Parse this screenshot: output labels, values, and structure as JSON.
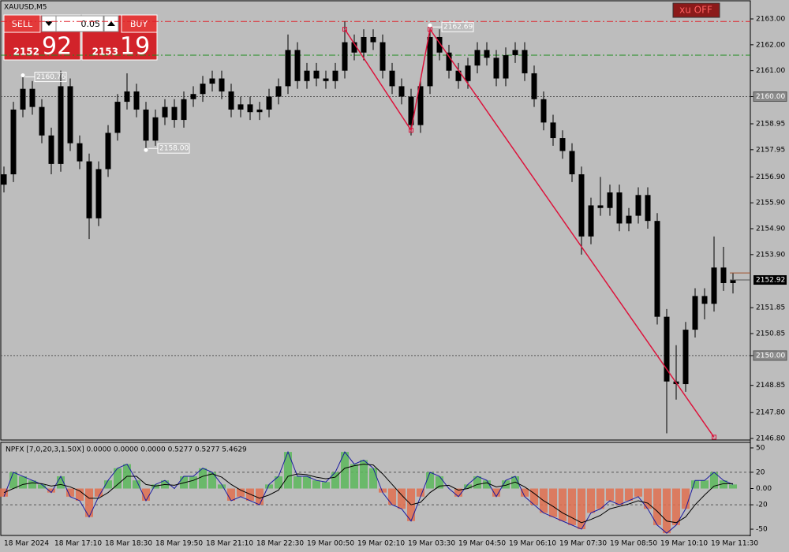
{
  "symbol_label": "XAUUSD,M5",
  "toolbar_button": "xu OFF",
  "trade_panel": {
    "sell": "SELL",
    "buy": "BUY",
    "lot": "0.05",
    "sell_price_main": "2152",
    "sell_price_big": "92",
    "buy_price_main": "2153",
    "buy_price_big": "19"
  },
  "chart_data": [
    {
      "type": "candlestick",
      "candle_color": "#000000",
      "x_labels": [
        "18 Mar 2024",
        "18 Mar 17:10",
        "18 Mar 18:30",
        "18 Mar 19:50",
        "18 Mar 21:10",
        "18 Mar 22:30",
        "19 Mar 00:50",
        "19 Mar 02:10",
        "19 Mar 03:30",
        "19 Mar 04:50",
        "19 Mar 06:10",
        "19 Mar 07:30",
        "19 Mar 08:50",
        "19 Mar 10:10",
        "19 Mar 11:30"
      ],
      "open": [
        2156.6,
        2157.0,
        2159.5,
        2160.3,
        2159.6,
        2158.5,
        2157.4,
        2160.4,
        2158.2,
        2157.5,
        2155.3,
        2157.2,
        2158.6,
        2159.8,
        2160.2,
        2159.5,
        2158.3,
        2159.2,
        2159.6,
        2159.1,
        2159.9,
        2160.1,
        2160.5,
        2160.7,
        2160.2,
        2159.5,
        2159.7,
        2159.4,
        2159.5,
        2160.0,
        2160.4,
        2161.8,
        2160.6,
        2161.0,
        2160.7,
        2160.6,
        2161.0,
        2162.1,
        2161.7,
        2162.3,
        2162.1,
        2161.0,
        2160.4,
        2160.0,
        2158.9,
        2160.4,
        2162.3,
        2161.7,
        2161.0,
        2160.6,
        2161.2,
        2161.8,
        2161.5,
        2160.7,
        2161.6,
        2161.8,
        2160.9,
        2159.9,
        2159.0,
        2158.4,
        2157.9,
        2157.0,
        2154.6,
        2155.8,
        2155.7,
        2156.3,
        2155.1,
        2155.4,
        2156.2,
        2155.2,
        2151.5,
        2149.0,
        2148.9,
        2151.0,
        2152.3,
        2152.0,
        2153.4,
        2152.8
      ],
      "high": [
        2157.3,
        2159.8,
        2160.76,
        2160.6,
        2159.9,
        2158.8,
        2161.0,
        2160.7,
        2158.5,
        2157.8,
        2157.5,
        2158.9,
        2160.1,
        2160.9,
        2160.5,
        2159.8,
        2159.5,
        2159.9,
        2159.9,
        2160.2,
        2160.4,
        2160.8,
        2161.0,
        2161.0,
        2160.5,
        2160.0,
        2160.0,
        2159.8,
        2160.3,
        2160.7,
        2162.4,
        2162.1,
        2161.3,
        2161.3,
        2161.0,
        2161.3,
        2162.9,
        2162.4,
        2162.6,
        2162.6,
        2162.4,
        2161.3,
        2160.7,
        2160.3,
        2160.7,
        2162.69,
        2162.6,
        2162.0,
        2161.3,
        2161.5,
        2162.1,
        2162.1,
        2161.8,
        2161.9,
        2162.1,
        2162.1,
        2161.2,
        2160.2,
        2159.3,
        2158.7,
        2158.2,
        2157.3,
        2156.1,
        2156.9,
        2156.6,
        2156.6,
        2155.7,
        2156.5,
        2156.5,
        2155.5,
        2151.8,
        2150.4,
        2151.3,
        2152.6,
        2152.6,
        2154.6,
        2154.2,
        2153.2
      ],
      "low": [
        2156.3,
        2156.7,
        2159.2,
        2159.3,
        2158.2,
        2157.0,
        2157.1,
        2157.9,
        2157.2,
        2154.5,
        2155.0,
        2156.9,
        2158.3,
        2159.5,
        2159.2,
        2158.0,
        2158.1,
        2158.9,
        2158.8,
        2158.8,
        2159.6,
        2159.8,
        2160.2,
        2159.9,
        2159.2,
        2159.2,
        2159.1,
        2159.1,
        2159.2,
        2159.7,
        2160.1,
        2160.3,
        2160.3,
        2160.4,
        2160.3,
        2160.3,
        2160.7,
        2161.4,
        2161.4,
        2161.8,
        2160.7,
        2160.1,
        2159.7,
        2158.5,
        2158.6,
        2160.1,
        2161.4,
        2160.7,
        2160.3,
        2160.3,
        2160.9,
        2161.2,
        2160.4,
        2160.4,
        2161.3,
        2160.6,
        2159.6,
        2158.7,
        2158.1,
        2157.6,
        2156.7,
        2153.9,
        2154.3,
        2155.4,
        2155.4,
        2154.8,
        2154.8,
        2155.1,
        2154.9,
        2151.2,
        2147.0,
        2148.3,
        2148.6,
        2150.7,
        2151.4,
        2151.7,
        2152.5,
        2152.4
      ],
      "close": [
        2157.0,
        2159.5,
        2160.3,
        2159.6,
        2158.5,
        2157.4,
        2160.4,
        2158.2,
        2157.5,
        2155.3,
        2157.2,
        2158.6,
        2159.8,
        2160.2,
        2159.5,
        2158.3,
        2159.2,
        2159.6,
        2159.1,
        2159.9,
        2160.1,
        2160.5,
        2160.7,
        2160.2,
        2159.5,
        2159.7,
        2159.4,
        2159.5,
        2160.0,
        2160.4,
        2161.8,
        2160.6,
        2161.0,
        2160.7,
        2160.6,
        2161.0,
        2162.1,
        2161.7,
        2162.3,
        2162.1,
        2161.0,
        2160.4,
        2160.0,
        2158.9,
        2160.4,
        2162.3,
        2161.7,
        2161.0,
        2160.6,
        2161.2,
        2161.8,
        2161.5,
        2160.7,
        2161.6,
        2161.8,
        2160.9,
        2159.9,
        2159.0,
        2158.4,
        2157.9,
        2157.0,
        2154.6,
        2155.8,
        2155.7,
        2156.3,
        2155.1,
        2155.4,
        2156.2,
        2155.2,
        2151.5,
        2149.0,
        2148.9,
        2151.0,
        2152.3,
        2152.0,
        2153.4,
        2152.8,
        2152.92
      ],
      "ylim": [
        2146.74,
        2163.7
      ],
      "yticks": [
        {
          "value": 2163,
          "label": "2163.00"
        },
        {
          "value": 2162,
          "label": "2162.00"
        },
        {
          "value": 2161,
          "label": "2161.00"
        },
        {
          "value": 2160,
          "label": "2160.00"
        },
        2158.95,
        2157.95,
        {
          "value": 2156.9,
          "label": "2156.90"
        },
        {
          "value": 2155.9,
          "label": "2155.90"
        },
        {
          "value": 2154.9,
          "label": "2154.90"
        },
        {
          "value": 2153.9,
          "label": "2153.90"
        },
        2151.85,
        2150.85,
        {
          "value": 2150,
          "label": "2150.00"
        },
        2148.85,
        {
          "value": 2147.8,
          "label": "2147.80"
        },
        {
          "value": 2146.8,
          "label": "2146.80"
        }
      ],
      "levels": [
        {
          "value": 2162.9,
          "color": "#e0202a",
          "dash": "dashdot"
        },
        {
          "value": 2161.6,
          "color": "#1a8a1a",
          "dash": "dashdot"
        },
        {
          "value": 2160,
          "color": "#555555",
          "dash": "dot"
        },
        {
          "value": 2150,
          "color": "#555555",
          "dash": "dot"
        }
      ],
      "last_price": 2152.92,
      "ask_line": 2153.19,
      "price_labels": [
        2160.76,
        {
          "value": 2158,
          "label": "2158.00"
        },
        2162.69
      ],
      "zigzag": {
        "color": "#dc143c",
        "x": [
          36,
          43,
          45,
          75
        ],
        "y": [
          2162.6,
          2158.7,
          2162.6,
          2146.85
        ]
      }
    },
    {
      "type": "histogram",
      "title": "NPFX [7,0,20,3,1.50X] 0.0000 0.0000 0.0000 0.5277 0.5277 5.4629",
      "positive_color": "#5cb85c",
      "negative_color": "#e07050",
      "line_color": "#1a1aa0",
      "signal_color": "#000000",
      "values": [
        -10,
        20,
        15,
        10,
        5,
        -5,
        15,
        -10,
        -15,
        -35,
        -10,
        10,
        25,
        30,
        10,
        -15,
        5,
        10,
        0,
        15,
        15,
        25,
        20,
        5,
        -15,
        -10,
        -15,
        -20,
        5,
        15,
        45,
        15,
        15,
        10,
        8,
        20,
        45,
        30,
        35,
        25,
        -5,
        -20,
        -25,
        -40,
        -10,
        20,
        15,
        0,
        -10,
        5,
        15,
        10,
        -10,
        10,
        15,
        -10,
        -20,
        -30,
        -35,
        -40,
        -45,
        -50,
        -30,
        -25,
        -15,
        -20,
        -15,
        -10,
        -25,
        -45,
        -55,
        -45,
        -25,
        10,
        10,
        20,
        10,
        5
      ],
      "signal": [
        -5,
        0,
        5,
        7,
        6,
        3,
        5,
        2,
        -3,
        -12,
        -12,
        -5,
        5,
        15,
        15,
        5,
        3,
        5,
        4,
        7,
        10,
        15,
        18,
        14,
        5,
        -2,
        -7,
        -12,
        -8,
        -2,
        15,
        18,
        17,
        14,
        12,
        14,
        25,
        28,
        30,
        29,
        18,
        5,
        -8,
        -20,
        -17,
        -5,
        3,
        4,
        -2,
        0,
        5,
        7,
        2,
        4,
        8,
        2,
        -6,
        -15,
        -22,
        -30,
        -36,
        -42,
        -38,
        -33,
        -25,
        -22,
        -19,
        -15,
        -18,
        -28,
        -40,
        -42,
        -35,
        -20,
        -8,
        3,
        6,
        6
      ],
      "ylim": [
        -58.7,
        55.8
      ],
      "yticks": [
        50,
        20,
        {
          "value": 0,
          "label": "0.00"
        },
        -20,
        -50
      ],
      "levels": [
        20,
        -20
      ]
    }
  ]
}
